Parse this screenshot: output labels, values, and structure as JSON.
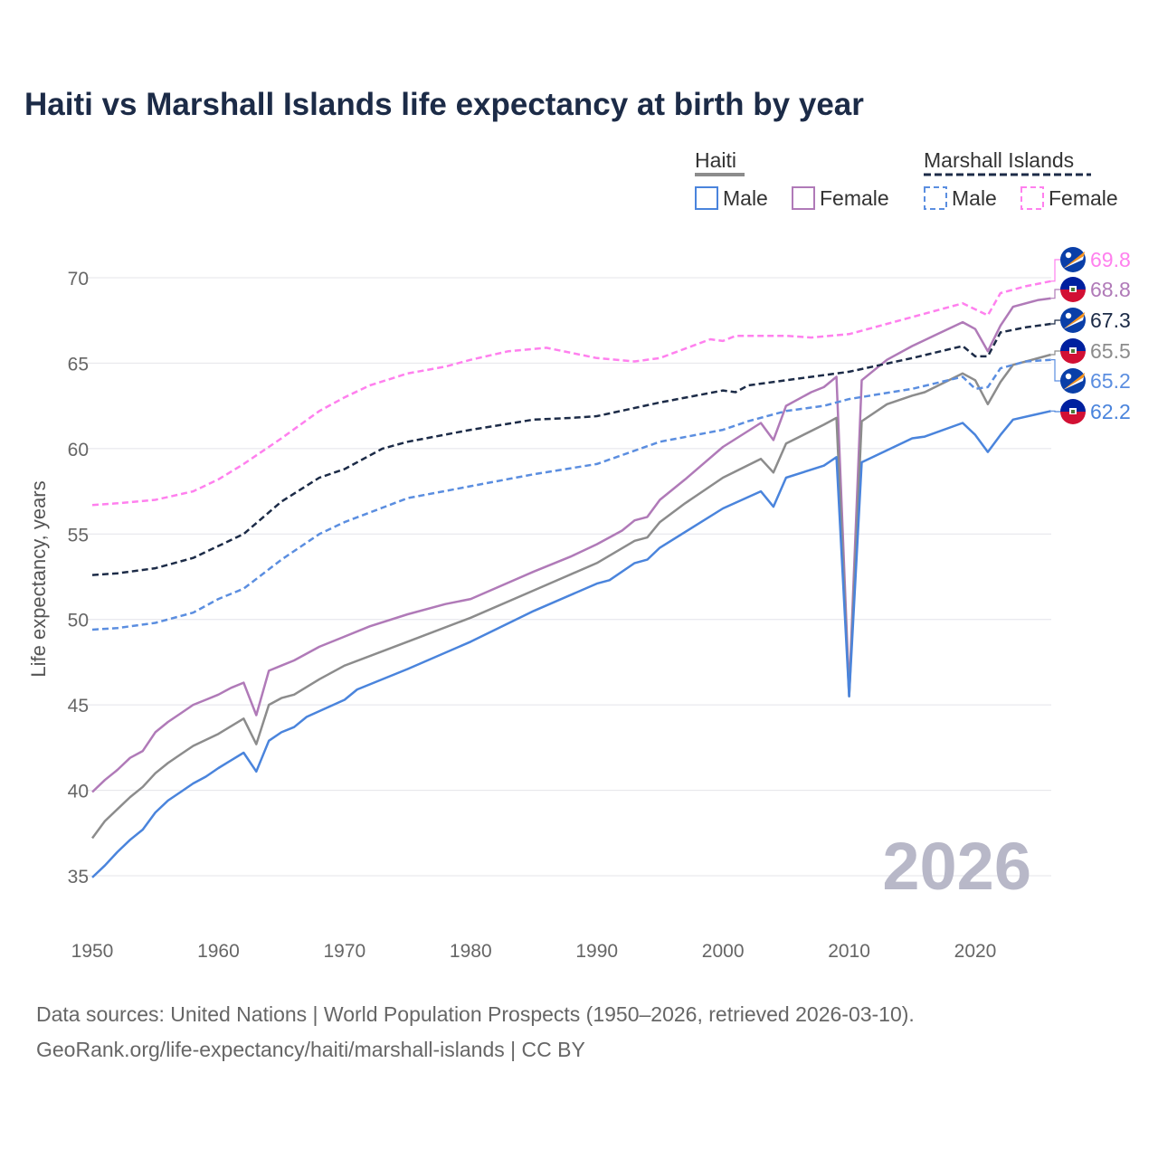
{
  "chart_data": {
    "type": "line",
    "title": "Haiti vs Marshall Islands life expectancy at birth by year",
    "xlabel": "",
    "ylabel": "Life expectancy, years",
    "xlim": [
      1950,
      2026
    ],
    "ylim": [
      33,
      72
    ],
    "x_ticks": [
      "1950",
      "1960",
      "1970",
      "1980",
      "1990",
      "2000",
      "2010",
      "2020"
    ],
    "y_ticks": [
      "35",
      "40",
      "45",
      "50",
      "55",
      "60",
      "65",
      "70"
    ],
    "grid": true,
    "watermark_year": "2026",
    "legend": {
      "placement": "top-right",
      "groups": [
        {
          "name": "Haiti",
          "items": [
            "Male",
            "Female"
          ]
        },
        {
          "name": "Marshall Islands",
          "items": [
            "Male",
            "Female"
          ]
        }
      ]
    },
    "series": [
      {
        "name": "Marshall Islands Female",
        "color": "#ff80ee",
        "dashed": true,
        "end_label": "69.8",
        "flag": "marshall-islands",
        "points": [
          [
            1950,
            56.7
          ],
          [
            1952,
            56.8
          ],
          [
            1955,
            57.0
          ],
          [
            1958,
            57.5
          ],
          [
            1960,
            58.2
          ],
          [
            1962,
            59.1
          ],
          [
            1965,
            60.6
          ],
          [
            1968,
            62.2
          ],
          [
            1970,
            63.0
          ],
          [
            1972,
            63.7
          ],
          [
            1975,
            64.4
          ],
          [
            1978,
            64.8
          ],
          [
            1980,
            65.2
          ],
          [
            1983,
            65.7
          ],
          [
            1986,
            65.9
          ],
          [
            1988,
            65.6
          ],
          [
            1990,
            65.3
          ],
          [
            1993,
            65.1
          ],
          [
            1995,
            65.3
          ],
          [
            1999,
            66.4
          ],
          [
            2000,
            66.3
          ],
          [
            2001,
            66.6
          ],
          [
            2005,
            66.6
          ],
          [
            2007,
            66.5
          ],
          [
            2010,
            66.7
          ],
          [
            2013,
            67.3
          ],
          [
            2016,
            67.9
          ],
          [
            2019,
            68.5
          ],
          [
            2021,
            67.8
          ],
          [
            2022,
            69.1
          ],
          [
            2024,
            69.5
          ],
          [
            2026,
            69.8
          ]
        ]
      },
      {
        "name": "Haiti Female",
        "color": "#b07ab8",
        "dashed": false,
        "end_label": "68.8",
        "flag": "haiti",
        "points": [
          [
            1950,
            39.9
          ],
          [
            1951,
            40.6
          ],
          [
            1952,
            41.2
          ],
          [
            1953,
            41.9
          ],
          [
            1954,
            42.3
          ],
          [
            1955,
            43.4
          ],
          [
            1956,
            44.0
          ],
          [
            1957,
            44.5
          ],
          [
            1958,
            45.0
          ],
          [
            1959,
            45.3
          ],
          [
            1960,
            45.6
          ],
          [
            1961,
            46.0
          ],
          [
            1962,
            46.3
          ],
          [
            1963,
            44.4
          ],
          [
            1964,
            47.0
          ],
          [
            1965,
            47.3
          ],
          [
            1966,
            47.6
          ],
          [
            1968,
            48.4
          ],
          [
            1970,
            49.0
          ],
          [
            1972,
            49.6
          ],
          [
            1975,
            50.3
          ],
          [
            1978,
            50.9
          ],
          [
            1980,
            51.2
          ],
          [
            1985,
            52.8
          ],
          [
            1988,
            53.7
          ],
          [
            1990,
            54.4
          ],
          [
            1992,
            55.2
          ],
          [
            1993,
            55.8
          ],
          [
            1994,
            56.0
          ],
          [
            1995,
            57.0
          ],
          [
            1997,
            58.2
          ],
          [
            2000,
            60.1
          ],
          [
            2003,
            61.5
          ],
          [
            2004,
            60.5
          ],
          [
            2005,
            62.5
          ],
          [
            2007,
            63.3
          ],
          [
            2008,
            63.6
          ],
          [
            2009,
            64.2
          ],
          [
            2010,
            45.8
          ],
          [
            2011,
            64.0
          ],
          [
            2013,
            65.2
          ],
          [
            2015,
            66.0
          ],
          [
            2017,
            66.7
          ],
          [
            2019,
            67.4
          ],
          [
            2020,
            67.0
          ],
          [
            2021,
            65.7
          ],
          [
            2022,
            67.2
          ],
          [
            2023,
            68.3
          ],
          [
            2025,
            68.7
          ],
          [
            2026,
            68.8
          ]
        ]
      },
      {
        "name": "Marshall Islands",
        "color": "#1c2b47",
        "dashed": true,
        "end_label": "67.3",
        "flag": "marshall-islands",
        "points": [
          [
            1950,
            52.6
          ],
          [
            1952,
            52.7
          ],
          [
            1955,
            53.0
          ],
          [
            1958,
            53.6
          ],
          [
            1960,
            54.3
          ],
          [
            1962,
            55.0
          ],
          [
            1965,
            56.9
          ],
          [
            1968,
            58.3
          ],
          [
            1970,
            58.8
          ],
          [
            1973,
            60.0
          ],
          [
            1975,
            60.4
          ],
          [
            1980,
            61.1
          ],
          [
            1985,
            61.7
          ],
          [
            1988,
            61.8
          ],
          [
            1990,
            61.9
          ],
          [
            1995,
            62.7
          ],
          [
            2000,
            63.4
          ],
          [
            2001,
            63.3
          ],
          [
            2002,
            63.7
          ],
          [
            2005,
            64.0
          ],
          [
            2010,
            64.5
          ],
          [
            2015,
            65.3
          ],
          [
            2019,
            66.0
          ],
          [
            2020,
            65.4
          ],
          [
            2021,
            65.4
          ],
          [
            2022,
            66.8
          ],
          [
            2024,
            67.1
          ],
          [
            2026,
            67.3
          ]
        ]
      },
      {
        "name": "Haiti",
        "color": "#8c8c8c",
        "dashed": false,
        "end_label": "65.5",
        "flag": "haiti",
        "points": [
          [
            1950,
            37.2
          ],
          [
            1951,
            38.2
          ],
          [
            1952,
            38.9
          ],
          [
            1953,
            39.6
          ],
          [
            1954,
            40.2
          ],
          [
            1955,
            41.0
          ],
          [
            1956,
            41.6
          ],
          [
            1957,
            42.1
          ],
          [
            1958,
            42.6
          ],
          [
            1960,
            43.3
          ],
          [
            1962,
            44.2
          ],
          [
            1963,
            42.7
          ],
          [
            1964,
            45.0
          ],
          [
            1965,
            45.4
          ],
          [
            1966,
            45.6
          ],
          [
            1968,
            46.5
          ],
          [
            1970,
            47.3
          ],
          [
            1975,
            48.7
          ],
          [
            1980,
            50.1
          ],
          [
            1985,
            51.7
          ],
          [
            1990,
            53.3
          ],
          [
            1993,
            54.6
          ],
          [
            1994,
            54.8
          ],
          [
            1995,
            55.7
          ],
          [
            1997,
            56.8
          ],
          [
            2000,
            58.3
          ],
          [
            2003,
            59.4
          ],
          [
            2004,
            58.6
          ],
          [
            2005,
            60.3
          ],
          [
            2008,
            61.4
          ],
          [
            2009,
            61.8
          ],
          [
            2010,
            45.5
          ],
          [
            2011,
            61.6
          ],
          [
            2013,
            62.6
          ],
          [
            2015,
            63.1
          ],
          [
            2016,
            63.3
          ],
          [
            2019,
            64.4
          ],
          [
            2020,
            64.0
          ],
          [
            2021,
            62.6
          ],
          [
            2022,
            63.9
          ],
          [
            2023,
            64.9
          ],
          [
            2026,
            65.5
          ]
        ]
      },
      {
        "name": "Marshall Islands Male",
        "color": "#5b8ee0",
        "dashed": true,
        "end_label": "65.2",
        "flag": "marshall-islands",
        "points": [
          [
            1950,
            49.4
          ],
          [
            1952,
            49.5
          ],
          [
            1955,
            49.8
          ],
          [
            1958,
            50.4
          ],
          [
            1960,
            51.2
          ],
          [
            1962,
            51.8
          ],
          [
            1965,
            53.5
          ],
          [
            1968,
            55.0
          ],
          [
            1970,
            55.7
          ],
          [
            1975,
            57.1
          ],
          [
            1980,
            57.8
          ],
          [
            1985,
            58.5
          ],
          [
            1990,
            59.1
          ],
          [
            1995,
            60.4
          ],
          [
            2000,
            61.1
          ],
          [
            2002,
            61.6
          ],
          [
            2005,
            62.2
          ],
          [
            2008,
            62.5
          ],
          [
            2010,
            62.9
          ],
          [
            2015,
            63.5
          ],
          [
            2019,
            64.2
          ],
          [
            2020,
            63.5
          ],
          [
            2021,
            63.6
          ],
          [
            2022,
            64.7
          ],
          [
            2024,
            65.1
          ],
          [
            2026,
            65.2
          ]
        ]
      },
      {
        "name": "Haiti Male",
        "color": "#4a84dc",
        "dashed": false,
        "end_label": "62.2",
        "flag": "haiti",
        "points": [
          [
            1950,
            34.9
          ],
          [
            1951,
            35.6
          ],
          [
            1952,
            36.4
          ],
          [
            1953,
            37.1
          ],
          [
            1954,
            37.7
          ],
          [
            1955,
            38.7
          ],
          [
            1956,
            39.4
          ],
          [
            1957,
            39.9
          ],
          [
            1958,
            40.4
          ],
          [
            1959,
            40.8
          ],
          [
            1960,
            41.3
          ],
          [
            1962,
            42.2
          ],
          [
            1963,
            41.1
          ],
          [
            1964,
            42.9
          ],
          [
            1965,
            43.4
          ],
          [
            1966,
            43.7
          ],
          [
            1967,
            44.3
          ],
          [
            1970,
            45.3
          ],
          [
            1971,
            45.9
          ],
          [
            1975,
            47.1
          ],
          [
            1980,
            48.7
          ],
          [
            1985,
            50.5
          ],
          [
            1990,
            52.1
          ],
          [
            1991,
            52.3
          ],
          [
            1993,
            53.3
          ],
          [
            1994,
            53.5
          ],
          [
            1995,
            54.2
          ],
          [
            2000,
            56.5
          ],
          [
            2003,
            57.5
          ],
          [
            2004,
            56.6
          ],
          [
            2005,
            58.3
          ],
          [
            2008,
            59.0
          ],
          [
            2009,
            59.5
          ],
          [
            2010,
            45.5
          ],
          [
            2011,
            59.2
          ],
          [
            2015,
            60.6
          ],
          [
            2016,
            60.7
          ],
          [
            2019,
            61.5
          ],
          [
            2020,
            60.8
          ],
          [
            2021,
            59.8
          ],
          [
            2022,
            60.8
          ],
          [
            2023,
            61.7
          ],
          [
            2026,
            62.2
          ]
        ]
      }
    ]
  },
  "footer": {
    "line1": "Data sources: United Nations | World Population Prospects (1950–2026, retrieved 2026-03-10).",
    "line2": "GeoRank.org/life-expectancy/haiti/marshall-islands | CC BY"
  }
}
